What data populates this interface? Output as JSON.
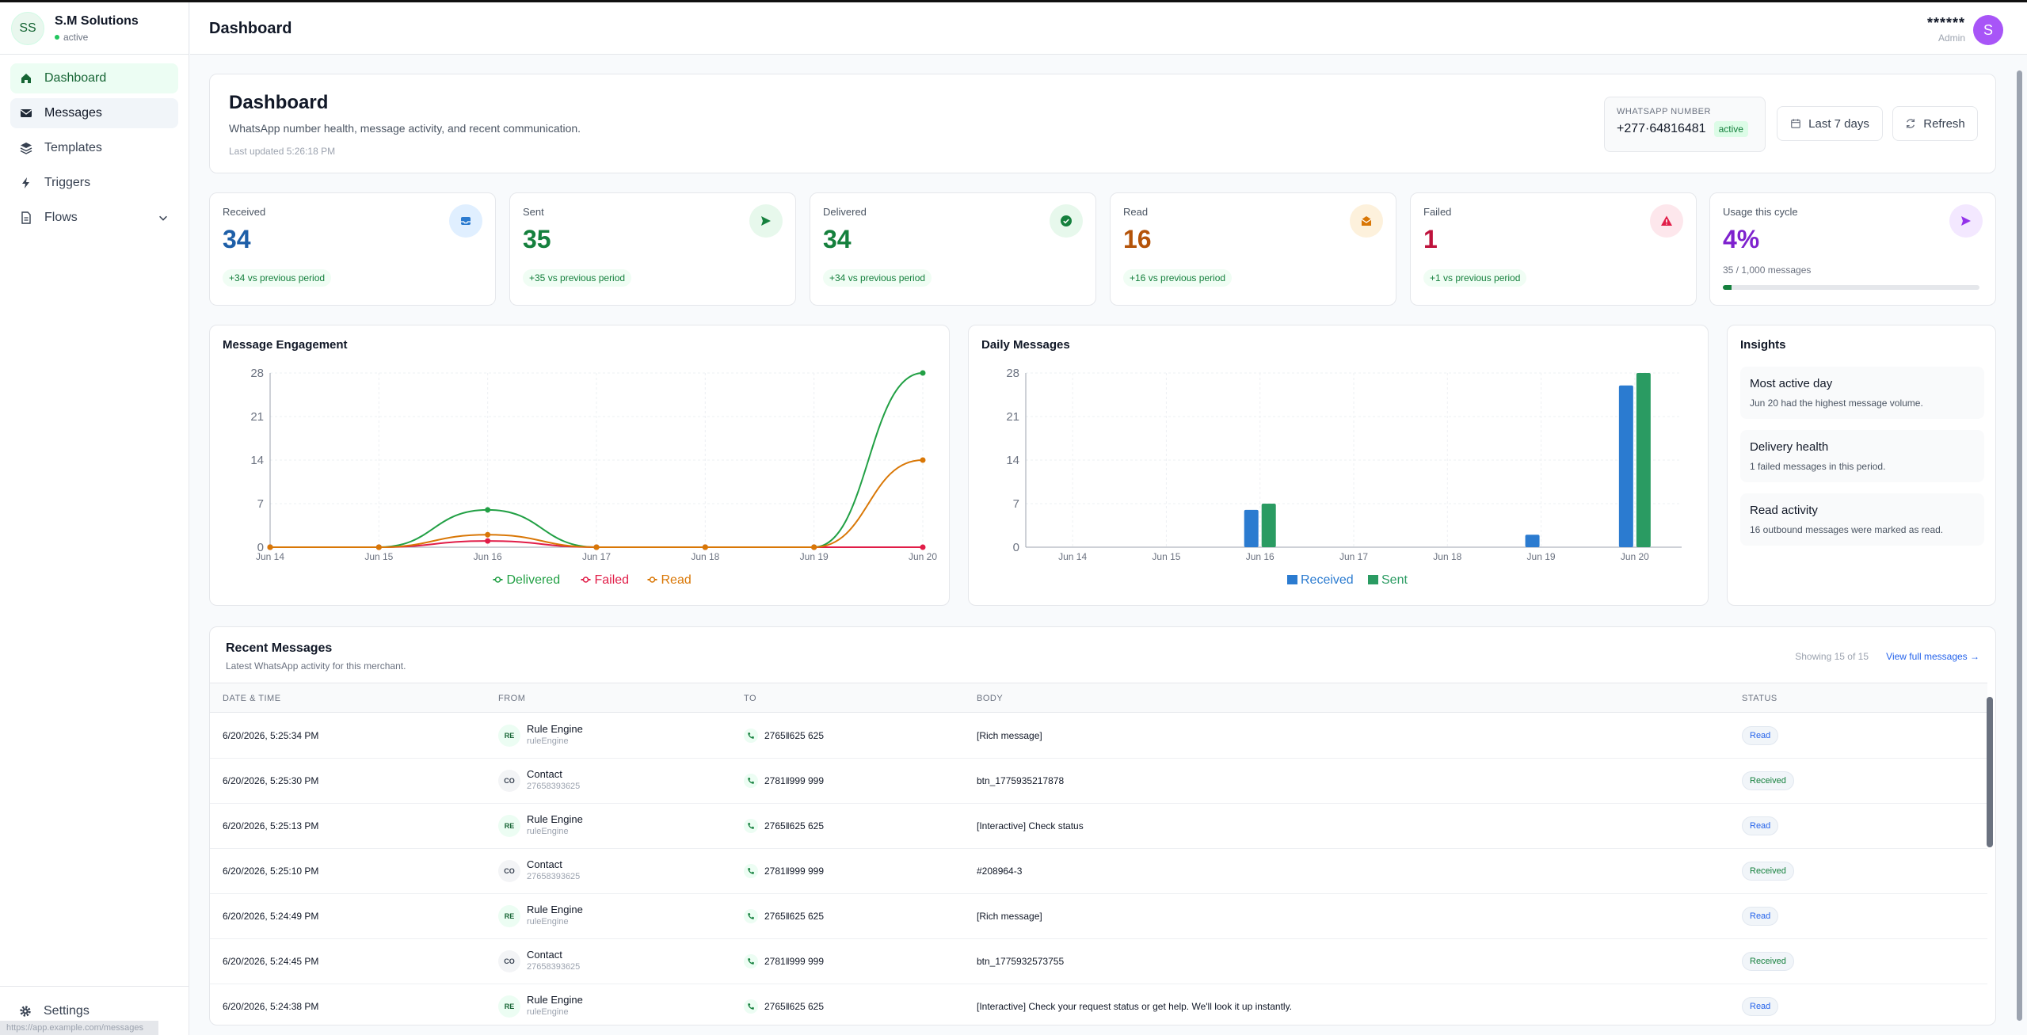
{
  "brand": {
    "initials": "SS",
    "name": "S.M Solutions",
    "status": "active"
  },
  "nav": [
    {
      "label": "Dashboard",
      "icon": "home-icon"
    },
    {
      "label": "Messages",
      "icon": "envelope-icon"
    },
    {
      "label": "Templates",
      "icon": "layers-icon"
    },
    {
      "label": "Triggers",
      "icon": "bolt-icon"
    },
    {
      "label": "Flows",
      "icon": "file-icon"
    }
  ],
  "settings_label": "Settings",
  "status_url": "https://app.example.com/messages",
  "topbar": {
    "title": "Dashboard",
    "user_name": "******",
    "user_role": "Admin",
    "avatar_letter": "S"
  },
  "hero": {
    "title": "Dashboard",
    "subtitle": "WhatsApp number health, message activity, and recent communication.",
    "updated": "Last updated 5:26:18 PM",
    "wa_label": "WHATSAPP NUMBER",
    "wa_number": "+277·64816481",
    "wa_status": "active",
    "range_label": "Last 7 days",
    "refresh_label": "Refresh"
  },
  "stats": [
    {
      "label": "Received",
      "value": "34",
      "delta": "+34 vs previous period",
      "color": "#1e5fa8",
      "icon": "inbox-icon"
    },
    {
      "label": "Sent",
      "value": "35",
      "delta": "+35 vs previous period",
      "color": "#15803d",
      "icon": "send-icon"
    },
    {
      "label": "Delivered",
      "value": "34",
      "delta": "+34 vs previous period",
      "color": "#15803d",
      "icon": "check-circle-icon"
    },
    {
      "label": "Read",
      "value": "16",
      "delta": "+16 vs previous period",
      "color": "#b45309",
      "icon": "open-mail-icon"
    },
    {
      "label": "Failed",
      "value": "1",
      "delta": "+1 vs previous period",
      "color": "#be123c",
      "icon": "alert-icon"
    }
  ],
  "usage": {
    "label": "Usage this cycle",
    "value": "4%",
    "sub": "35 / 1,000 messages",
    "fraction": 0.035
  },
  "chart_data": [
    {
      "type": "line",
      "title": "Message Engagement",
      "x": [
        "Jun 14",
        "Jun 15",
        "Jun 16",
        "Jun 17",
        "Jun 18",
        "Jun 19",
        "Jun 20"
      ],
      "yticks": [
        "0",
        "7",
        "14",
        "21",
        "28"
      ],
      "ylim": [
        0,
        28
      ],
      "series": [
        {
          "name": "Delivered",
          "color": "#22a045",
          "values": [
            0,
            0,
            6,
            0,
            0,
            0,
            28
          ]
        },
        {
          "name": "Failed",
          "color": "#e11d48",
          "values": [
            0,
            0,
            1,
            0,
            0,
            0,
            0
          ]
        },
        {
          "name": "Read",
          "color": "#d97706",
          "values": [
            0,
            0,
            2,
            0,
            0,
            0,
            14
          ]
        }
      ],
      "legend": "bottom"
    },
    {
      "type": "bar",
      "title": "Daily Messages",
      "categories": [
        "Jun 14",
        "Jun 15",
        "Jun 16",
        "Jun 17",
        "Jun 18",
        "Jun 19",
        "Jun 20"
      ],
      "yticks": [
        "0",
        "7",
        "14",
        "21",
        "28"
      ],
      "ylim": [
        0,
        28
      ],
      "series": [
        {
          "name": "Received",
          "color": "#2b7bd0",
          "values": [
            0,
            0,
            6,
            0,
            0,
            2,
            26
          ]
        },
        {
          "name": "Sent",
          "color": "#2a9b62",
          "values": [
            0,
            0,
            7,
            0,
            0,
            0,
            28
          ]
        }
      ],
      "legend": "bottom"
    }
  ],
  "insights": {
    "title": "Insights",
    "items": [
      {
        "title": "Most active day",
        "desc": "Jun 20 had the highest message volume."
      },
      {
        "title": "Delivery health",
        "desc": "1 failed messages in this period."
      },
      {
        "title": "Read activity",
        "desc": "16 outbound messages were marked as read."
      }
    ]
  },
  "recent": {
    "title": "Recent Messages",
    "subtitle": "Latest WhatsApp activity for this merchant.",
    "showing": "Showing 15 of 15",
    "link": "View full messages →",
    "columns": [
      "DATE & TIME",
      "FROM",
      "TO",
      "BODY",
      "STATUS"
    ],
    "rows": [
      {
        "date": "6/20/2026, 5:25:34 PM",
        "from_chip": "RE",
        "from_name": "Rule Engine",
        "from_sub": "ruleEngine",
        "to": "2765‖625 625",
        "body": "[Rich message]",
        "status": "Read"
      },
      {
        "date": "6/20/2026, 5:25:30 PM",
        "from_chip": "CO",
        "from_name": "Contact",
        "from_sub": "27658393625",
        "to": "2781‖999 999",
        "body": "btn_1775935217878",
        "status": "Received"
      },
      {
        "date": "6/20/2026, 5:25:13 PM",
        "from_chip": "RE",
        "from_name": "Rule Engine",
        "from_sub": "ruleEngine",
        "to": "2765‖625 625",
        "body": "[Interactive] Check status",
        "status": "Read"
      },
      {
        "date": "6/20/2026, 5:25:10 PM",
        "from_chip": "CO",
        "from_name": "Contact",
        "from_sub": "27658393625",
        "to": "2781‖999 999",
        "body": "#208964-3",
        "status": "Received"
      },
      {
        "date": "6/20/2026, 5:24:49 PM",
        "from_chip": "RE",
        "from_name": "Rule Engine",
        "from_sub": "ruleEngine",
        "to": "2765‖625 625",
        "body": "[Rich message]",
        "status": "Read"
      },
      {
        "date": "6/20/2026, 5:24:45 PM",
        "from_chip": "CO",
        "from_name": "Contact",
        "from_sub": "27658393625",
        "to": "2781‖999 999",
        "body": "btn_1775932573755",
        "status": "Received"
      },
      {
        "date": "6/20/2026, 5:24:38 PM",
        "from_chip": "RE",
        "from_name": "Rule Engine",
        "from_sub": "ruleEngine",
        "to": "2765‖625 625",
        "body": "[Interactive] Check your request status or get help. We'll look it up instantly.",
        "status": "Read"
      }
    ]
  }
}
